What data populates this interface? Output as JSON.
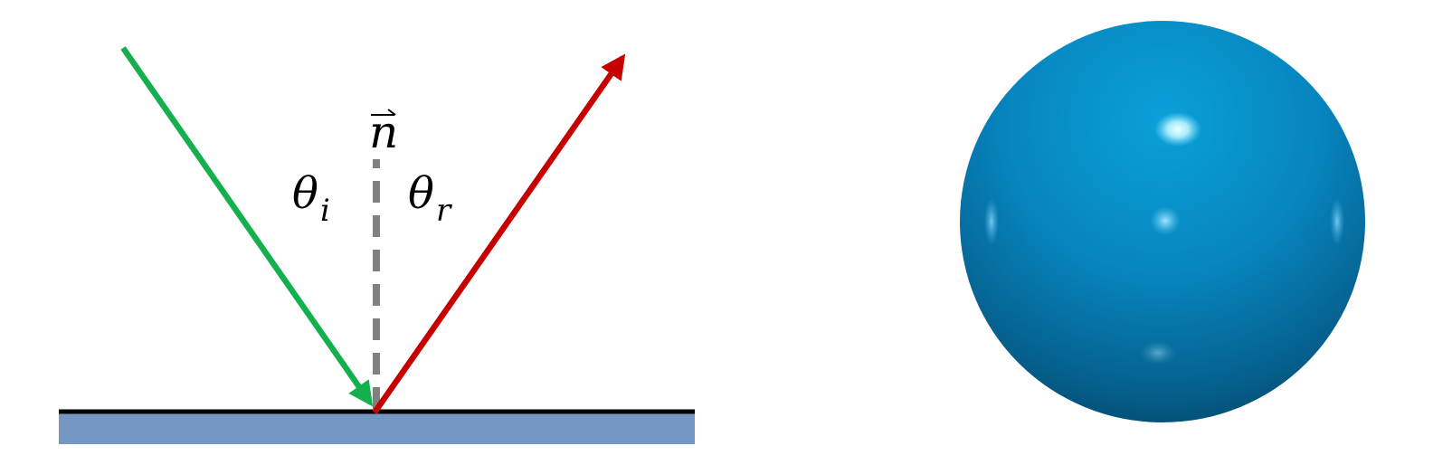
{
  "diagram": {
    "normal_label": "n",
    "incident_angle": {
      "symbol": "θ",
      "subscript": "i"
    },
    "reflected_angle": {
      "symbol": "θ",
      "subscript": "r"
    }
  },
  "colors": {
    "incident_ray": "#14b04e",
    "reflected_ray": "#c60000",
    "normal_line": "#808080",
    "surface_fill": "#7397c2",
    "surface_edge": "#000000",
    "sphere_base": "#0b7fb6",
    "sphere_highlight": "#e8ffff"
  },
  "icons": {
    "vector_arrow": "right-harpoon-arrow"
  }
}
